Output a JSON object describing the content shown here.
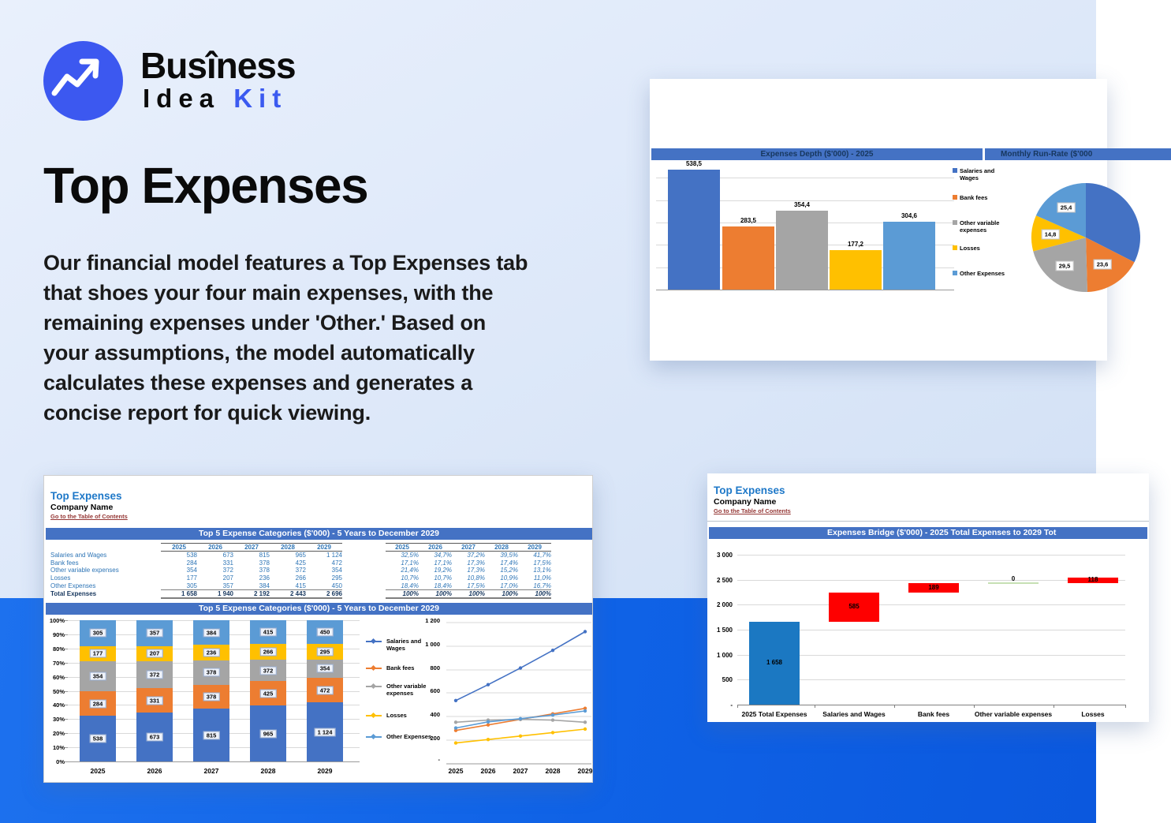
{
  "logo": {
    "line1": "Busîness",
    "line2_black": "Idea",
    "line2_blue": "Kit",
    "circle_color": "#3c58f0"
  },
  "hero": {
    "title": "Top Expenses",
    "paragraph": "Our financial model features a Top Expenses tab\nthat shoes your four main expenses, with the\nremaining expenses under 'Other.' Based on\nyour assumptions, the model automatically\ncalculates these expenses and generates a\nconcise report for quick viewing."
  },
  "series": [
    {
      "name": "Salaries and Wages",
      "legend_label": "Salaries and\nWages",
      "color": "#4472C4"
    },
    {
      "name": "Bank fees",
      "legend_label": "Bank fees",
      "color": "#ED7D31"
    },
    {
      "name": "Other variable expenses",
      "legend_label": "Other variable\nexpenses",
      "color": "#A5A5A5"
    },
    {
      "name": "Losses",
      "legend_label": "Losses",
      "color": "#FFC000"
    },
    {
      "name": "Other Expenses",
      "legend_label": "Other Expenses",
      "color": "#5B9BD5"
    }
  ],
  "depth_card": {
    "bar_header": "Expenses Depth ($'000) - 2025",
    "pie_header": "Monthly Run-Rate ($'000",
    "chart_data": [
      {
        "type": "bar",
        "title": "Expenses Depth ($'000) - 2025",
        "categories": [
          "Salaries and Wages",
          "Bank fees",
          "Other variable expenses",
          "Losses",
          "Other Expenses"
        ],
        "values": [
          538.5,
          283.5,
          354.4,
          177.2,
          304.6
        ],
        "labels": [
          "538,5",
          "283,5",
          "354,4",
          "177,2",
          "304,6"
        ],
        "ylim": [
          0,
          600
        ],
        "grid_step": 100,
        "legend_position": "right"
      },
      {
        "type": "pie",
        "title": "Monthly Run-Rate ($'000",
        "slices": [
          {
            "name": "Salaries and Wages",
            "share_pct": 32.5,
            "label": ""
          },
          {
            "name": "Bank fees",
            "share_pct": 17.1,
            "label": "23,6"
          },
          {
            "name": "Other variable expenses",
            "share_pct": 21.4,
            "label": "29,5"
          },
          {
            "name": "Losses",
            "share_pct": 10.7,
            "label": "14,8"
          },
          {
            "name": "Other Expenses",
            "share_pct": 18.4,
            "label": "25,4"
          }
        ]
      }
    ]
  },
  "top5_sheet": {
    "title": "Top Expenses",
    "company": "Company Name",
    "toc_link": "Go to the Table of Contents",
    "table_header": "Top 5 Expense Categories ($'000) - 5 Years to December 2029",
    "chart_header": "Top 5 Expense Categories ($'000) - 5 Years to December 2029",
    "years": [
      "2025",
      "2026",
      "2027",
      "2028",
      "2029"
    ],
    "rows": [
      {
        "label": "Salaries and Wages",
        "values": [
          "538",
          "673",
          "815",
          "965",
          "1 124"
        ],
        "pcts": [
          "32,5%",
          "34,7%",
          "37,2%",
          "39,5%",
          "41,7%"
        ]
      },
      {
        "label": "Bank fees",
        "values": [
          "284",
          "331",
          "378",
          "425",
          "472"
        ],
        "pcts": [
          "17,1%",
          "17,1%",
          "17,3%",
          "17,4%",
          "17,5%"
        ]
      },
      {
        "label": "Other variable expenses",
        "values": [
          "354",
          "372",
          "378",
          "372",
          "354"
        ],
        "pcts": [
          "21,4%",
          "19,2%",
          "17,3%",
          "15,2%",
          "13,1%"
        ]
      },
      {
        "label": "Losses",
        "values": [
          "177",
          "207",
          "236",
          "266",
          "295"
        ],
        "pcts": [
          "10,7%",
          "10,7%",
          "10,8%",
          "10,9%",
          "11,0%"
        ]
      },
      {
        "label": "Other Expenses",
        "values": [
          "305",
          "357",
          "384",
          "415",
          "450"
        ],
        "pcts": [
          "18,4%",
          "18,4%",
          "17,5%",
          "17,0%",
          "16,7%"
        ]
      }
    ],
    "total_row": {
      "label": "Total Expenses",
      "values": [
        "1 658",
        "1 940",
        "2 192",
        "2 443",
        "2 696"
      ],
      "pcts": [
        "100%",
        "100%",
        "100%",
        "100%",
        "100%"
      ]
    },
    "chart_data": [
      {
        "type": "stacked-bar-100",
        "categories": [
          "2025",
          "2026",
          "2027",
          "2028",
          "2029"
        ],
        "totals": [
          1658,
          1940,
          2192,
          2443,
          2696
        ],
        "series": [
          {
            "name": "Salaries and Wages",
            "values": [
              538,
              673,
              815,
              965,
              1124
            ],
            "labels": [
              "538",
              "673",
              "815",
              "965",
              "1 124"
            ]
          },
          {
            "name": "Bank fees",
            "values": [
              284,
              331,
              378,
              425,
              472
            ],
            "labels": [
              "284",
              "331",
              "378",
              "425",
              "472"
            ]
          },
          {
            "name": "Other variable expenses",
            "values": [
              354,
              372,
              378,
              372,
              354
            ],
            "labels": [
              "354",
              "372",
              "378",
              "372",
              "354"
            ]
          },
          {
            "name": "Losses",
            "values": [
              177,
              207,
              236,
              266,
              295
            ],
            "labels": [
              "177",
              "207",
              "236",
              "266",
              "295"
            ]
          },
          {
            "name": "Other Expenses",
            "values": [
              305,
              357,
              384,
              415,
              450
            ],
            "labels": [
              "305",
              "357",
              "384",
              "415",
              "450"
            ]
          }
        ],
        "y_ticks": [
          "100%",
          "90%",
          "80%",
          "70%",
          "60%",
          "50%",
          "40%",
          "30%",
          "20%",
          "10%",
          "0%"
        ]
      },
      {
        "type": "line",
        "x": [
          "2025",
          "2026",
          "2027",
          "2028",
          "2029"
        ],
        "series": [
          {
            "name": "Salaries and Wages",
            "values": [
              538,
              673,
              815,
              965,
              1124
            ]
          },
          {
            "name": "Bank fees",
            "values": [
              284,
              331,
              378,
              425,
              472
            ]
          },
          {
            "name": "Other variable expenses",
            "values": [
              354,
              372,
              378,
              372,
              354
            ]
          },
          {
            "name": "Losses",
            "values": [
              177,
              207,
              236,
              266,
              295
            ]
          },
          {
            "name": "Other Expenses",
            "values": [
              305,
              357,
              384,
              415,
              450
            ]
          }
        ],
        "y_ticks": [
          "1 200",
          "1 000",
          "800",
          "600",
          "400",
          "200",
          "-"
        ],
        "ylim": [
          0,
          1220
        ]
      }
    ]
  },
  "bridge_sheet": {
    "title": "Top Expenses",
    "company": "Company Name",
    "toc_link": "Go to the Table of Contents",
    "chart_header": "Expenses Bridge ($'000) - 2025 Total Expenses to 2029 Tot",
    "chart_data": {
      "type": "waterfall",
      "y_ticks": [
        "3 000",
        "2 500",
        "2 000",
        "1 500",
        "1 000",
        "500",
        "-"
      ],
      "ymax": 3000,
      "bars": [
        {
          "label": "2025 Total Expenses",
          "start": 0,
          "end": 1658,
          "display": "1 658",
          "kind": "total"
        },
        {
          "label": "Salaries and Wages",
          "start": 1658,
          "end": 2243,
          "display": "585",
          "kind": "increase"
        },
        {
          "label": "Bank fees",
          "start": 2243,
          "end": 2432,
          "display": "189",
          "kind": "increase"
        },
        {
          "label": "Other variable expenses",
          "start": 2432,
          "end": 2432,
          "display": "0",
          "kind": "zero"
        },
        {
          "label": "Losses",
          "start": 2432,
          "end": 2550,
          "display": "118",
          "kind": "increase"
        }
      ],
      "colors": {
        "total": "#1b78c2",
        "increase": "#fe0000",
        "zero": "#c6e0b4"
      }
    }
  }
}
